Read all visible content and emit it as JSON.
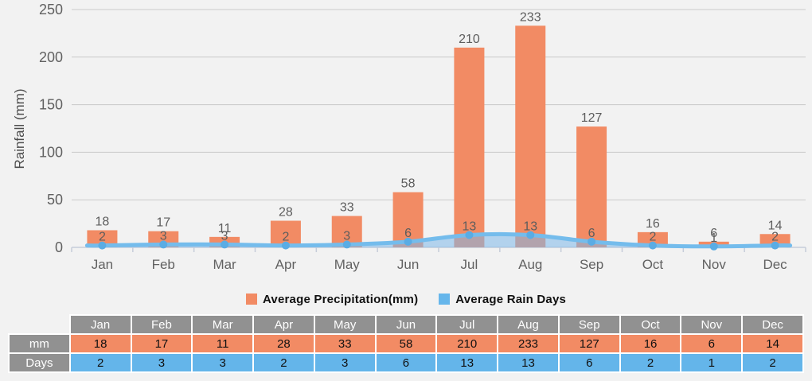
{
  "chart_data": {
    "type": "bar+area",
    "categories": [
      "Jan",
      "Feb",
      "Mar",
      "Apr",
      "May",
      "Jun",
      "Jul",
      "Aug",
      "Sep",
      "Oct",
      "Nov",
      "Dec"
    ],
    "series": [
      {
        "name": "Average Precipitation(mm)",
        "type": "bar",
        "color": "#f28b64",
        "values": [
          18,
          17,
          11,
          28,
          33,
          58,
          210,
          233,
          127,
          16,
          6,
          14
        ]
      },
      {
        "name": "Average Rain Days",
        "type": "area",
        "line_color": "#74bcec",
        "fill_color": "rgba(126,184,233,0.55)",
        "marker_color": "#5aace4",
        "color": "#66b6eb",
        "values": [
          2,
          3,
          3,
          2,
          3,
          6,
          13,
          13,
          6,
          2,
          1,
          2
        ]
      }
    ],
    "ylabel": "Rainfall (mm)",
    "ylim": [
      0,
      250
    ],
    "yticks": [
      0,
      50,
      100,
      150,
      200,
      250
    ],
    "grid": true,
    "legend_position": "bottom"
  },
  "colors": {
    "background": "#f2f2f2",
    "gridline": "#c9c9c9",
    "axis": "#c6cdd9",
    "tick_label": "#616161",
    "value_label": "#5d5d5d",
    "axis_title": "#4d4d4d"
  },
  "table": {
    "corner_label": "",
    "columns": [
      "Jan",
      "Feb",
      "Mar",
      "Apr",
      "May",
      "Jun",
      "Jul",
      "Aug",
      "Sep",
      "Oct",
      "Nov",
      "Dec"
    ],
    "rows": [
      {
        "label": "mm",
        "bg": "#f28b64",
        "values": [
          "18",
          "17",
          "11",
          "28",
          "33",
          "58",
          "210",
          "233",
          "127",
          "16",
          "6",
          "14"
        ]
      },
      {
        "label": "Days",
        "bg": "#64b5ea",
        "values": [
          "2",
          "3",
          "3",
          "2",
          "3",
          "6",
          "13",
          "13",
          "6",
          "2",
          "1",
          "2"
        ]
      }
    ],
    "header_bg": "#919191"
  }
}
